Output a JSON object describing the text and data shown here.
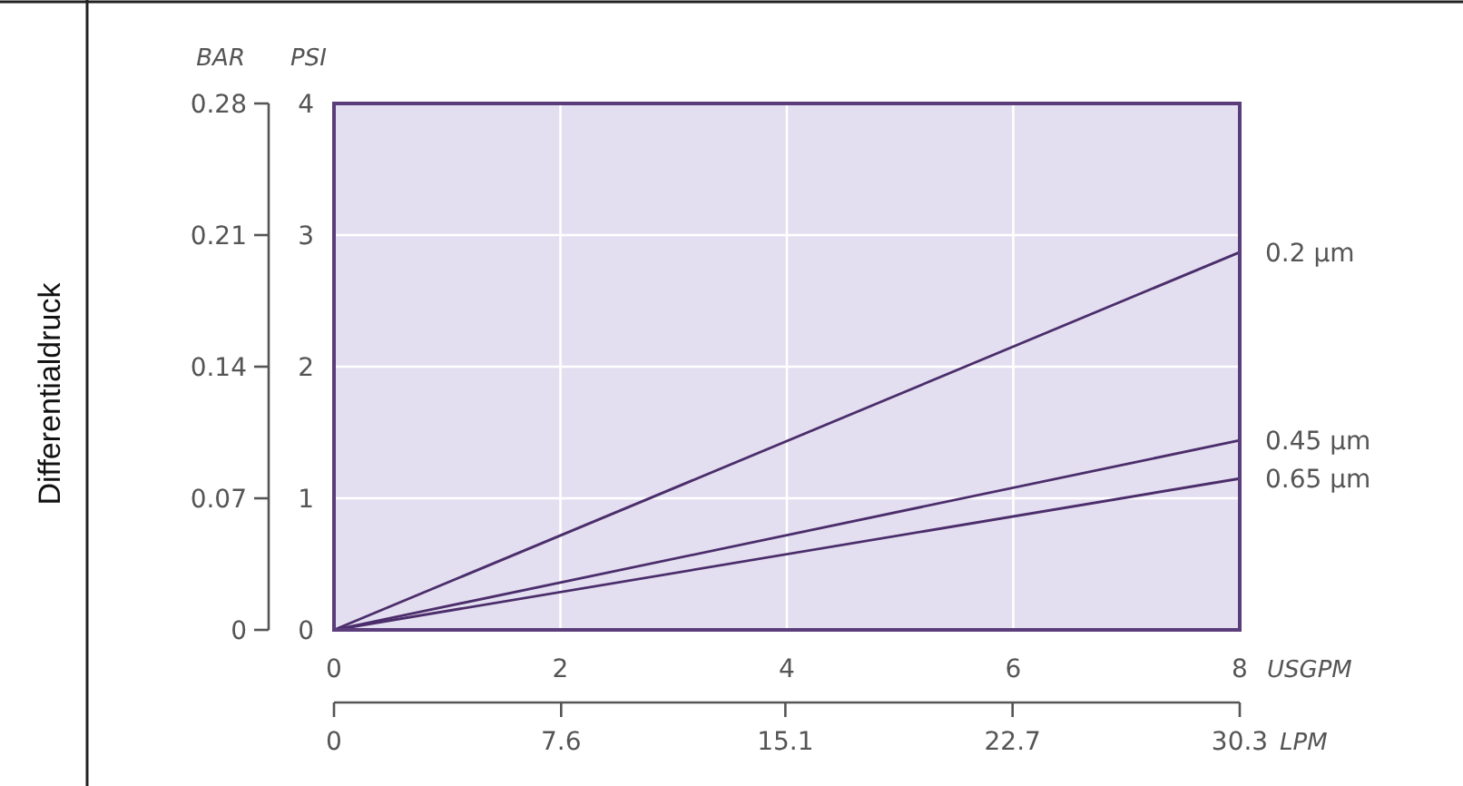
{
  "chart_data": {
    "type": "line",
    "ylabel": "Differentialdruck",
    "y2label": "PSI",
    "xlabel": "USGPM",
    "x2label": "LPM",
    "annotations": [
      "BAR"
    ],
    "x": [
      0,
      8
    ],
    "series": [
      {
        "name": "0.2 µm",
        "color": "#4b2d6b",
        "axis": "y2",
        "values": [
          0,
          2.87
        ]
      },
      {
        "name": "0.45 µm",
        "color": "#4b2d6b",
        "axis": "y2",
        "values": [
          0,
          1.44
        ]
      },
      {
        "name": "0.65 µm",
        "color": "#4b2d6b",
        "axis": "y2",
        "values": [
          0,
          1.15
        ]
      }
    ],
    "xlim": [
      0,
      8
    ],
    "xticks": [
      0,
      2,
      4,
      6,
      8
    ],
    "ylim": [
      0,
      0.28
    ],
    "yticks": [
      0,
      0.07,
      0.14,
      0.21,
      0.28
    ],
    "y2lim": [
      0,
      4
    ],
    "y2ticks": [
      0,
      1,
      2,
      3,
      4
    ],
    "x2lim": [
      0,
      30.3
    ],
    "x2ticks": [
      0,
      7.6,
      15.1,
      22.7,
      30.3
    ],
    "grid": true
  }
}
